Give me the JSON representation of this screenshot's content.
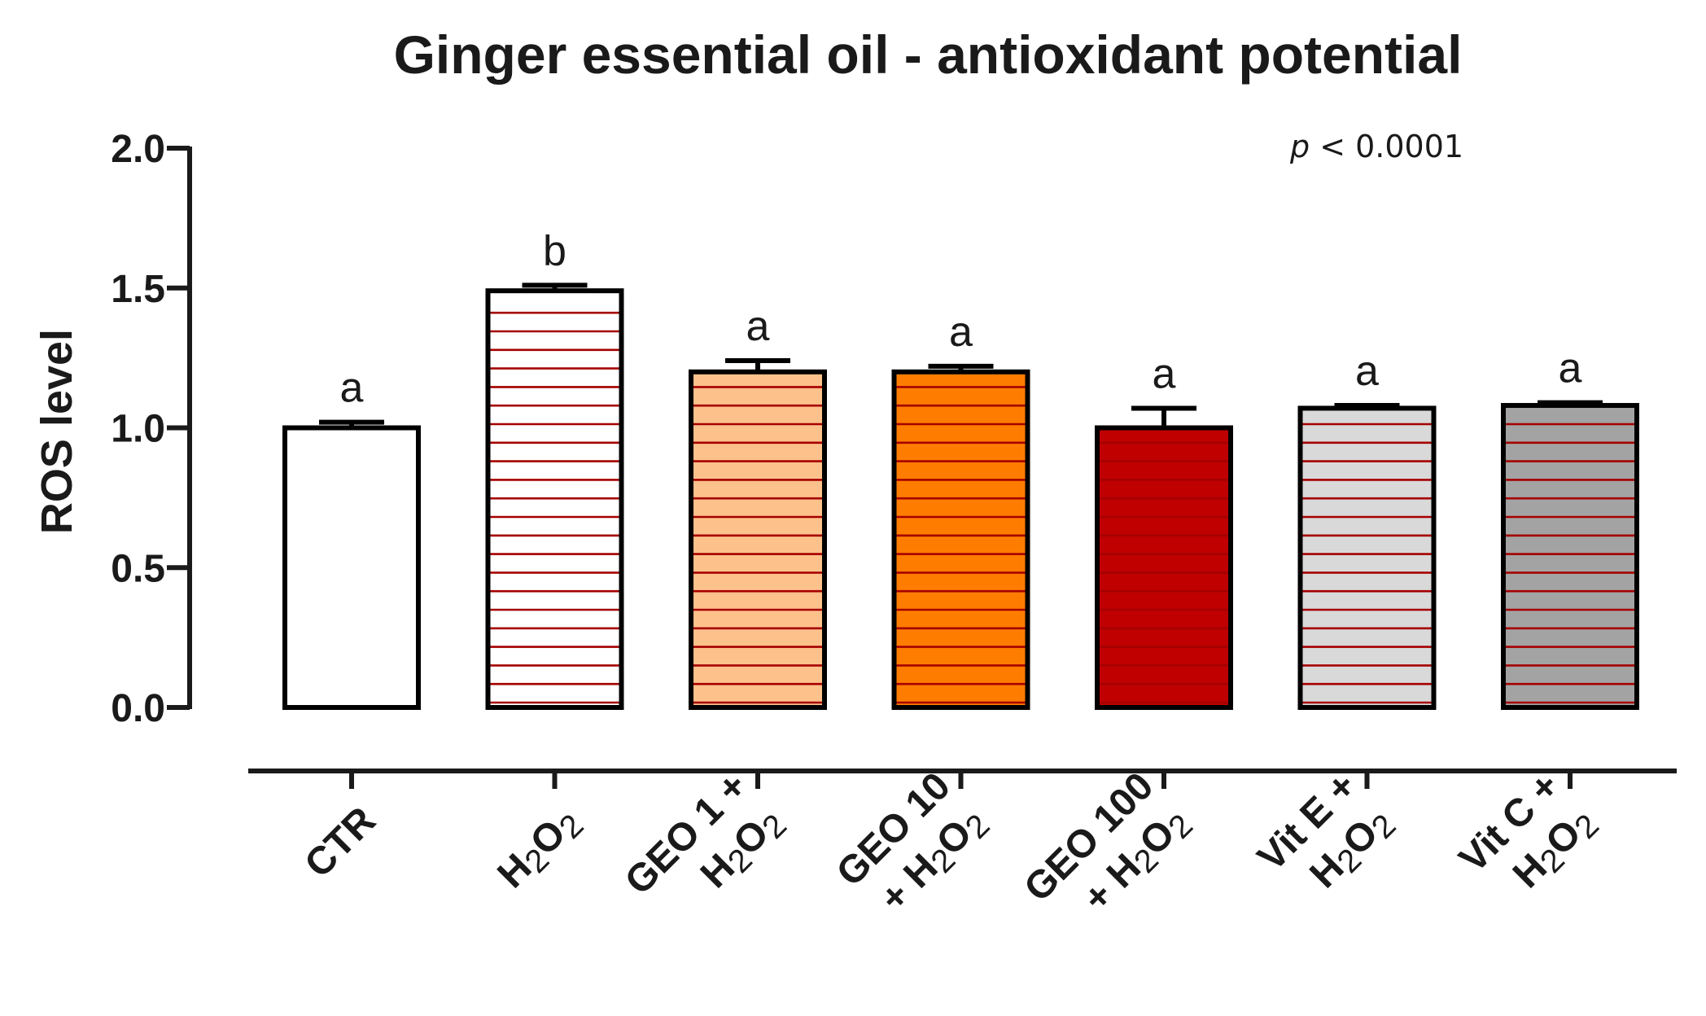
{
  "chart_data": {
    "type": "bar",
    "title": "Ginger essential oil - antioxidant potential",
    "xlabel": "",
    "ylabel": "ROS level",
    "ylim": [
      0,
      2.0
    ],
    "yticks": [
      0.0,
      0.5,
      1.0,
      1.5,
      2.0
    ],
    "ytick_labels": [
      "0.0",
      "0.5",
      "1.0",
      "1.5",
      "2.0"
    ],
    "annotation": {
      "italic_part": "p",
      "rest": " < 0.0001"
    },
    "categories": [
      {
        "id": "ctr",
        "lines": [
          [
            {
              "t": "CTR"
            }
          ]
        ],
        "value": 1.0,
        "error": 0.02,
        "letter": "a",
        "fill": "#ffffff",
        "hatch": false
      },
      {
        "id": "h2o2",
        "lines": [
          [
            {
              "t": "H"
            },
            {
              "t": "2",
              "sub": true
            },
            {
              "t": "O"
            },
            {
              "t": "2",
              "sub": true
            }
          ]
        ],
        "value": 1.49,
        "error": 0.02,
        "letter": "b",
        "fill": "#ffffff",
        "hatch": true
      },
      {
        "id": "geo1",
        "lines": [
          [
            {
              "t": "GEO 1 +"
            }
          ],
          [
            {
              "t": "H"
            },
            {
              "t": "2",
              "sub": true
            },
            {
              "t": "O"
            },
            {
              "t": "2",
              "sub": true
            }
          ]
        ],
        "value": 1.2,
        "error": 0.04,
        "letter": "a",
        "fill": "#fdc18b",
        "hatch": true
      },
      {
        "id": "geo10",
        "lines": [
          [
            {
              "t": "GEO 10"
            }
          ],
          [
            {
              "t": "+ H"
            },
            {
              "t": "2",
              "sub": true
            },
            {
              "t": "O"
            },
            {
              "t": "2",
              "sub": true
            }
          ]
        ],
        "value": 1.2,
        "error": 0.02,
        "letter": "a",
        "fill": "#fe7d00",
        "hatch": true
      },
      {
        "id": "geo100",
        "lines": [
          [
            {
              "t": "GEO 100"
            }
          ],
          [
            {
              "t": "+ H"
            },
            {
              "t": "2",
              "sub": true
            },
            {
              "t": "O"
            },
            {
              "t": "2",
              "sub": true
            }
          ]
        ],
        "value": 1.0,
        "error": 0.07,
        "letter": "a",
        "fill": "#c00000",
        "hatch": true
      },
      {
        "id": "vite",
        "lines": [
          [
            {
              "t": "Vit E +"
            }
          ],
          [
            {
              "t": "H"
            },
            {
              "t": "2",
              "sub": true
            },
            {
              "t": "O"
            },
            {
              "t": "2",
              "sub": true
            }
          ]
        ],
        "value": 1.07,
        "error": 0.01,
        "letter": "a",
        "fill": "#d9d9d9",
        "hatch": true
      },
      {
        "id": "vitc",
        "lines": [
          [
            {
              "t": "Vit C +"
            }
          ],
          [
            {
              "t": "H"
            },
            {
              "t": "2",
              "sub": true
            },
            {
              "t": "O"
            },
            {
              "t": "2",
              "sub": true
            }
          ]
        ],
        "value": 1.08,
        "error": 0.01,
        "letter": "a",
        "fill": "#a3a3a3",
        "hatch": true
      }
    ],
    "colors": {
      "axis": "#1a1a1a",
      "bar_outline": "#000000",
      "hatch_line": "#a50000"
    }
  }
}
